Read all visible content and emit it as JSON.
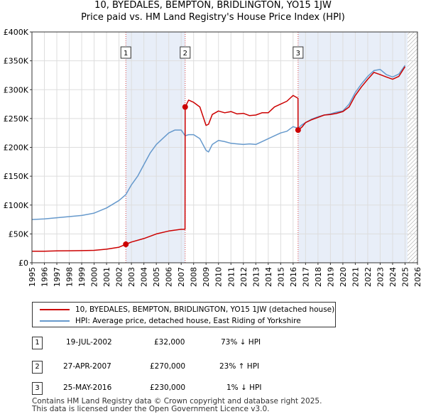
{
  "header": {
    "title": "10, BYEDALES, BEMPTON, BRIDLINGTON, YO15 1JW",
    "subtitle": "Price paid vs. HM Land Registry's House Price Index (HPI)"
  },
  "colors": {
    "property": "#cc0000",
    "hpi": "#6699cc",
    "shade": "#e8eef8",
    "hatch": "#999999"
  },
  "chart_data": {
    "type": "line",
    "title": "10, BYEDALES, BEMPTON, BRIDLINGTON, YO15 1JW",
    "subtitle": "Price paid vs. HM Land Registry's House Price Index (HPI)",
    "xlim": [
      1995,
      2026
    ],
    "ylim": [
      0,
      400000
    ],
    "x_ticks": [
      "1995",
      "1996",
      "1997",
      "1998",
      "1999",
      "2000",
      "2001",
      "2002",
      "2003",
      "2004",
      "2005",
      "2006",
      "2007",
      "2008",
      "2009",
      "2010",
      "2011",
      "2012",
      "2013",
      "2014",
      "2015",
      "2016",
      "2017",
      "2018",
      "2019",
      "2020",
      "2021",
      "2022",
      "2023",
      "2024",
      "2025",
      "2026"
    ],
    "y_ticks": [
      {
        "value": 0,
        "label": "£0"
      },
      {
        "value": 50000,
        "label": "£50K"
      },
      {
        "value": 100000,
        "label": "£100K"
      },
      {
        "value": 150000,
        "label": "£150K"
      },
      {
        "value": 200000,
        "label": "£200K"
      },
      {
        "value": 250000,
        "label": "£250K"
      },
      {
        "value": 300000,
        "label": "£300K"
      },
      {
        "value": 350000,
        "label": "£350K"
      },
      {
        "value": 400000,
        "label": "£400K"
      }
    ],
    "grid": true,
    "shaded_spans": [
      [
        2002.55,
        2007.32
      ],
      [
        2016.4,
        2025.2
      ]
    ],
    "forecast_from": 2025.2,
    "series": [
      {
        "name": "10, BYEDALES, BEMPTON, BRIDLINGTON, YO15 1JW (detached house)",
        "x": [
          1995.0,
          1996.0,
          1997.0,
          1998.0,
          1999.0,
          2000.0,
          2001.0,
          2002.0,
          2002.55,
          2003.0,
          2004.0,
          2005.0,
          2006.0,
          2007.0,
          2007.31,
          2007.32,
          2007.6,
          2008.0,
          2008.5,
          2009.0,
          2009.2,
          2009.5,
          2010.0,
          2010.5,
          2011.0,
          2011.5,
          2012.0,
          2012.5,
          2013.0,
          2013.5,
          2014.0,
          2014.5,
          2015.0,
          2015.5,
          2016.0,
          2016.39,
          2016.4,
          2016.7,
          2017.0,
          2017.5,
          2018.0,
          2018.5,
          2019.0,
          2019.5,
          2020.0,
          2020.5,
          2021.0,
          2021.5,
          2022.0,
          2022.5,
          2023.0,
          2023.5,
          2024.0,
          2024.5,
          2025.0
        ],
        "y": [
          20000,
          20000,
          20500,
          20800,
          21000,
          21500,
          23500,
          27000,
          32000,
          36000,
          42000,
          50000,
          55000,
          58000,
          58000,
          270000,
          282000,
          278000,
          270000,
          238000,
          240000,
          257000,
          263000,
          260000,
          262000,
          258000,
          259000,
          255000,
          256000,
          260000,
          260000,
          270000,
          275000,
          280000,
          290000,
          285000,
          230000,
          235000,
          243000,
          248000,
          252000,
          256000,
          257000,
          259000,
          262000,
          270000,
          290000,
          305000,
          318000,
          330000,
          326000,
          322000,
          318000,
          323000,
          340000
        ]
      },
      {
        "name": "HPI: Average price, detached house, East Riding of Yorkshire",
        "x": [
          1995.0,
          1996.0,
          1997.0,
          1998.0,
          1999.0,
          2000.0,
          2001.0,
          2002.0,
          2002.55,
          2003.0,
          2003.5,
          2004.0,
          2004.5,
          2005.0,
          2005.5,
          2006.0,
          2006.5,
          2007.0,
          2007.32,
          2007.6,
          2008.0,
          2008.5,
          2009.0,
          2009.2,
          2009.5,
          2010.0,
          2010.5,
          2011.0,
          2011.5,
          2012.0,
          2012.5,
          2013.0,
          2013.5,
          2014.0,
          2014.5,
          2015.0,
          2015.5,
          2016.0,
          2016.4,
          2016.7,
          2017.0,
          2017.5,
          2018.0,
          2018.5,
          2019.0,
          2019.5,
          2020.0,
          2020.5,
          2021.0,
          2021.5,
          2022.0,
          2022.5,
          2023.0,
          2023.5,
          2024.0,
          2024.5,
          2025.0
        ],
        "y": [
          75000,
          76000,
          78000,
          80000,
          82000,
          86000,
          95000,
          108000,
          118000,
          135000,
          150000,
          170000,
          190000,
          205000,
          215000,
          225000,
          230000,
          230000,
          220000,
          222000,
          222000,
          215000,
          195000,
          192000,
          205000,
          212000,
          210000,
          207000,
          206000,
          205000,
          206000,
          205000,
          210000,
          215000,
          220000,
          225000,
          228000,
          236000,
          233000,
          239000,
          243000,
          249000,
          253000,
          256000,
          258000,
          261000,
          263000,
          275000,
          295000,
          310000,
          323000,
          333000,
          335000,
          326000,
          322000,
          327000,
          342000
        ]
      }
    ],
    "sales": [
      {
        "id": "1",
        "x": 2002.55,
        "y": 32000
      },
      {
        "id": "2",
        "x": 2007.32,
        "y": 270000
      },
      {
        "id": "3",
        "x": 2016.4,
        "y": 230000
      }
    ]
  },
  "legend": {
    "property": "10, BYEDALES, BEMPTON, BRIDLINGTON, YO15 1JW (detached house)",
    "hpi": "HPI: Average price, detached house, East Riding of Yorkshire"
  },
  "sales_table": [
    {
      "num": "1",
      "date": "19-JUL-2002",
      "price": "£32,000",
      "hpi": "73% ↓ HPI"
    },
    {
      "num": "2",
      "date": "27-APR-2007",
      "price": "£270,000",
      "hpi": "23% ↑ HPI"
    },
    {
      "num": "3",
      "date": "25-MAY-2016",
      "price": "£230,000",
      "hpi": "1% ↓ HPI"
    }
  ],
  "footer": {
    "line1": "Contains HM Land Registry data © Crown copyright and database right 2025.",
    "line2": "This data is licensed under the Open Government Licence v3.0."
  }
}
